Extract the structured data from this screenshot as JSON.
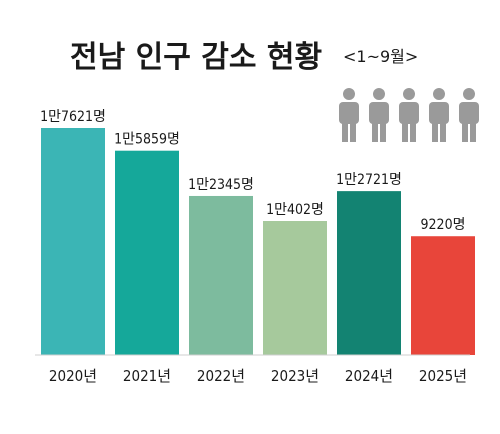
{
  "chart_data": {
    "type": "bar",
    "title": "전남 인구 감소 현황",
    "subtitle": "<1~9월>",
    "categories": [
      "2020년",
      "2021년",
      "2022년",
      "2023년",
      "2024년",
      "2025년"
    ],
    "values": [
      17621,
      15859,
      12345,
      10402,
      12721,
      9220
    ],
    "value_labels": [
      "1만7621명",
      "1만5859명",
      "1만2345명",
      "1만402명",
      "1만2721명",
      "9220명"
    ],
    "colors": [
      "#3bb5b5",
      "#15a89a",
      "#7dbb9e",
      "#a6c99c",
      "#138372",
      "#e8453a"
    ],
    "ylim": [
      0,
      17621
    ],
    "grid": false,
    "legend": "none"
  },
  "decoration": {
    "people_icon_count": 5,
    "people_icon_color": "#9a9a9a"
  }
}
